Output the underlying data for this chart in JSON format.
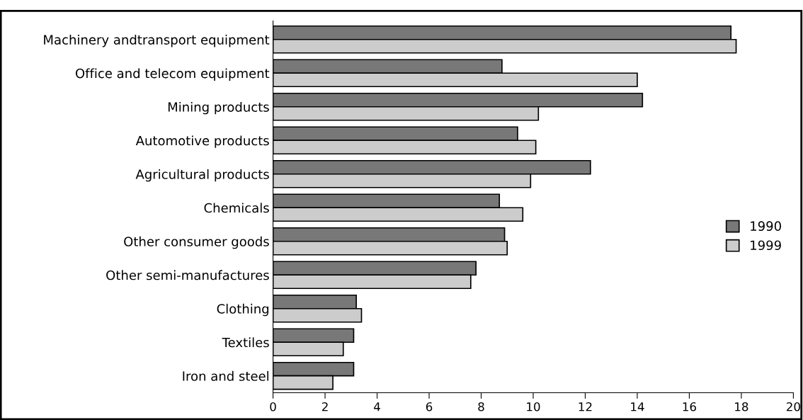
{
  "chart_data": {
    "type": "bar",
    "orientation": "horizontal",
    "categories": [
      "Machinery andtransport equipment",
      "Office and telecom equipment",
      "Mining products",
      "Automotive products",
      "Agricultural products",
      "Chemicals",
      "Other consumer goods",
      "Other semi-manufactures",
      "Clothing",
      "Textiles",
      "Iron and steel"
    ],
    "series": [
      {
        "name": "1990",
        "color": "#787878",
        "values": [
          17.6,
          8.8,
          14.2,
          9.4,
          12.2,
          8.7,
          8.9,
          7.8,
          3.2,
          3.1,
          3.1
        ]
      },
      {
        "name": "1999",
        "color": "#cccccc",
        "values": [
          17.8,
          14.0,
          10.2,
          10.1,
          9.9,
          9.6,
          9.0,
          7.6,
          3.4,
          2.7,
          2.3
        ]
      }
    ],
    "xlim": [
      0,
      20
    ],
    "xticks": [
      0,
      2,
      4,
      6,
      8,
      10,
      12,
      14,
      16,
      18,
      20
    ],
    "grid": false,
    "legend": "right"
  }
}
